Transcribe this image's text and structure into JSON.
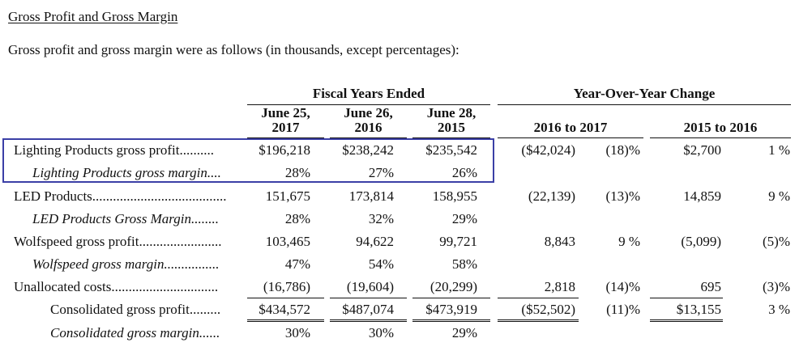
{
  "heading": "Gross Profit and Gross Margin",
  "intro": "Gross profit and gross margin were as follows (in thousands, except percentages):",
  "groups": {
    "fiscal": "Fiscal Years Ended",
    "yoy": "Year-Over-Year Change"
  },
  "columns": {
    "c1_line1": "June 25,",
    "c1_line2": "2017",
    "c2_line1": "June 26,",
    "c2_line2": "2016",
    "c3_line1": "June 28,",
    "c3_line2": "2015",
    "c4": "2016 to 2017",
    "c5": "2015 to 2016"
  },
  "rows": [
    {
      "label": "Lighting Products gross profit",
      "leader": "..........",
      "v": [
        "$196,218",
        "$238,242",
        "$235,542",
        "($42,024)",
        "(18)%",
        "$2,700",
        "1 %"
      ]
    },
    {
      "label": "Lighting Products gross margin",
      "leader": "....",
      "v": [
        "28%",
        "27%",
        "26%",
        "",
        "",
        "",
        ""
      ]
    },
    {
      "label": "LED Products",
      "leader": ".......................................",
      "v": [
        "151,675",
        "173,814",
        "158,955",
        "(22,139)",
        "(13)%",
        "14,859",
        "9 %"
      ]
    },
    {
      "label": "LED Products Gross Margin",
      "leader": "........",
      "v": [
        "28%",
        "32%",
        "29%",
        "",
        "",
        "",
        ""
      ]
    },
    {
      "label": "Wolfspeed gross profit",
      "leader": "........................",
      "v": [
        "103,465",
        "94,622",
        "99,721",
        "8,843",
        "9 %",
        "(5,099)",
        "(5)%"
      ]
    },
    {
      "label": "Wolfspeed gross margin",
      "leader": "................",
      "v": [
        "47%",
        "54%",
        "58%",
        "",
        "",
        "",
        ""
      ]
    },
    {
      "label": "Unallocated costs",
      "leader": "...............................",
      "v": [
        "(16,786)",
        "(19,604)",
        "(20,299)",
        "2,818",
        "(14)%",
        "695",
        "(3)%"
      ]
    },
    {
      "label": "Consolidated gross profit",
      "leader": ".........",
      "v": [
        "$434,572",
        "$487,074",
        "$473,919",
        "($52,502)",
        "(11)%",
        "$13,155",
        "3 %"
      ]
    },
    {
      "label": "Consolidated gross margin",
      "leader": "......",
      "v": [
        "30%",
        "30%",
        "29%",
        "",
        "",
        "",
        ""
      ]
    }
  ]
}
